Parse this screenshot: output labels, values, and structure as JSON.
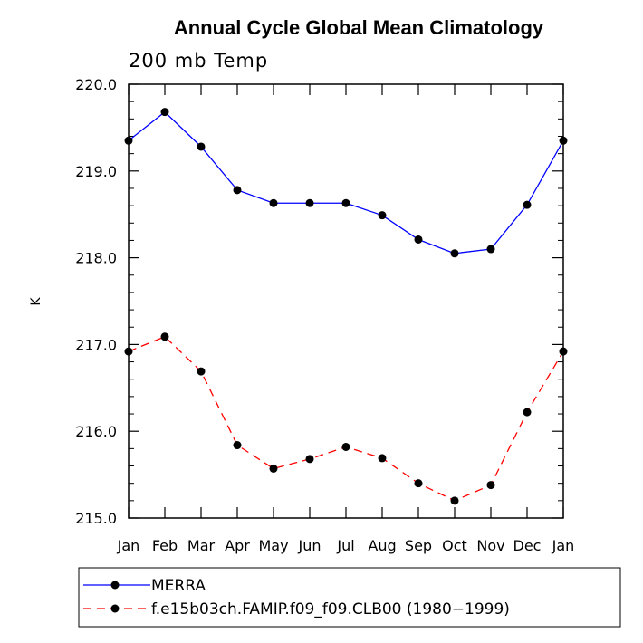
{
  "chart_data": {
    "type": "line",
    "title": "Annual Cycle Global Mean Climatology",
    "subtitle": "200 mb Temp",
    "xlabel": "",
    "ylabel": "K",
    "categories": [
      "Jan",
      "Feb",
      "Mar",
      "Apr",
      "May",
      "Jun",
      "Jul",
      "Aug",
      "Sep",
      "Oct",
      "Nov",
      "Dec",
      "Jan"
    ],
    "ylim": [
      215.0,
      220.0
    ],
    "yticks": [
      "215.0",
      "216.0",
      "217.0",
      "218.0",
      "219.0",
      "220.0"
    ],
    "grid": false,
    "legend_placement": "bottom",
    "series": [
      {
        "name": "MERRA",
        "color": "#0000ff",
        "dash": "solid",
        "marker": "filled-circle",
        "values": [
          219.35,
          219.68,
          219.28,
          218.78,
          218.63,
          218.63,
          218.63,
          218.49,
          218.21,
          218.05,
          218.1,
          218.61,
          219.35
        ]
      },
      {
        "name": "f.e15b03ch.FAMIP.f09_f09.CLB00 (1980−1999)",
        "color": "#ff0000",
        "dash": "dashed",
        "marker": "filled-circle",
        "values": [
          216.92,
          217.09,
          216.69,
          215.84,
          215.57,
          215.68,
          215.82,
          215.69,
          215.4,
          215.2,
          215.38,
          216.22,
          216.92
        ]
      }
    ]
  }
}
